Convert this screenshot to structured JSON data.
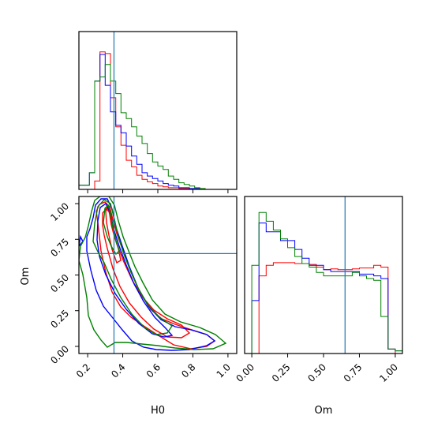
{
  "chart_data": {
    "type": "corner",
    "parameters": [
      "H0",
      "Om"
    ],
    "axis_labels": {
      "x_bottom_left": "H0",
      "x_bottom_right": "Om",
      "y_left_lower": "Om"
    },
    "truths": {
      "H0": 0.35,
      "Om": 0.65
    },
    "truth_color": "#1f77b4",
    "series": [
      {
        "color": "#ff0000"
      },
      {
        "color": "#0000ff"
      },
      {
        "color": "#008000"
      }
    ],
    "h0_ticks": [
      "0.2",
      "0.4",
      "0.6",
      "0.8",
      "1.0"
    ],
    "om_ticks": [
      "0.00",
      "0.25",
      "0.50",
      "0.75",
      "1.00"
    ],
    "ranges": {
      "H0": [
        0.15,
        1.05
      ],
      "Om": [
        -0.05,
        1.05
      ]
    },
    "hist_h0": {
      "edges": [
        0.15,
        0.18,
        0.21,
        0.24,
        0.27,
        0.3,
        0.33,
        0.36,
        0.39,
        0.42,
        0.45,
        0.48,
        0.51,
        0.54,
        0.57,
        0.6,
        0.63,
        0.66,
        0.69,
        0.72,
        0.75,
        0.78,
        0.81,
        0.84,
        0.87,
        0.9,
        0.93,
        0.96,
        0.99
      ],
      "values": [
        [
          0,
          0,
          0,
          10,
          165,
          163,
          110,
          75,
          53,
          35,
          27,
          17,
          12,
          9,
          7,
          4,
          3,
          2,
          2,
          1,
          1,
          0,
          0,
          0,
          0,
          0,
          0,
          0
        ],
        [
          5,
          5,
          20,
          130,
          162,
          125,
          93,
          77,
          68,
          52,
          40,
          30,
          20,
          16,
          13,
          10,
          7,
          5,
          4,
          2,
          2,
          1,
          1,
          0,
          0,
          0,
          0,
          0
        ],
        [
          5,
          5,
          20,
          130,
          135,
          150,
          130,
          115,
          92,
          85,
          75,
          64,
          55,
          43,
          33,
          28,
          24,
          16,
          12,
          8,
          6,
          4,
          2,
          1,
          0,
          0,
          0,
          0
        ]
      ],
      "ymax": 180
    },
    "hist_om": {
      "edges": [
        -0.05,
        0.0,
        0.05,
        0.1,
        0.15,
        0.2,
        0.25,
        0.3,
        0.35,
        0.4,
        0.45,
        0.5,
        0.55,
        0.6,
        0.65,
        0.7,
        0.75,
        0.8,
        0.85,
        0.9,
        0.95,
        1.0,
        1.05
      ],
      "values": [
        [
          0,
          0,
          88,
          100,
          103,
          103,
          103,
          102,
          102,
          101,
          98,
          95,
          96,
          95,
          95,
          96,
          97,
          97,
          100,
          98,
          5,
          0
        ],
        [
          0,
          60,
          148,
          138,
          138,
          128,
          128,
          118,
          108,
          100,
          100,
          95,
          93,
          93,
          93,
          93,
          90,
          90,
          88,
          85,
          5,
          3
        ],
        [
          0,
          100,
          160,
          150,
          140,
          130,
          120,
          110,
          102,
          98,
          92,
          88,
          88,
          88,
          88,
          92,
          88,
          85,
          83,
          42,
          5,
          3
        ]
      ],
      "ymax": 170
    }
  }
}
